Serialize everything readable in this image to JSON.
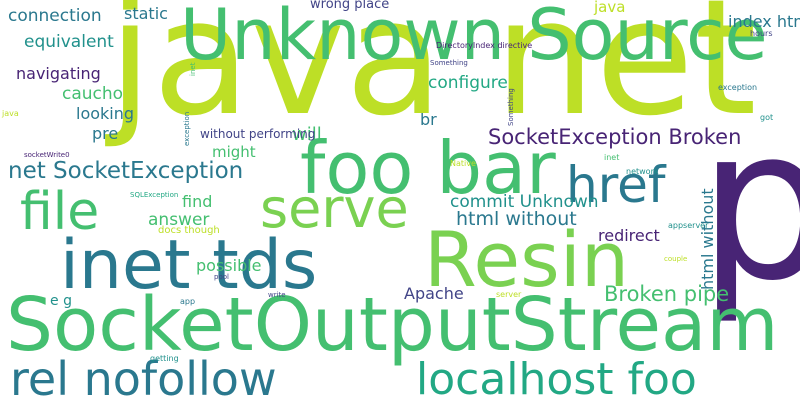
{
  "palette": {
    "dark_purple": "#482475",
    "indigo": "#414487",
    "blue": "#355f8d",
    "teal_blue": "#2a788e",
    "teal": "#21918c",
    "green_teal": "#22a884",
    "green": "#44bf70",
    "light_green": "#7ad151",
    "yellow_green": "#bddf26"
  },
  "words": [
    {
      "text": "java net",
      "color": "#bddf26"
    },
    {
      "text": "p",
      "color": "#482475"
    },
    {
      "text": "Unknown Source",
      "color": "#44bf70"
    },
    {
      "text": "SocketOutputStream",
      "color": "#44bf70"
    },
    {
      "text": "Resin",
      "color": "#7ad151"
    },
    {
      "text": "inet tds",
      "color": "#2a788e"
    },
    {
      "text": "foo bar",
      "color": "#44bf70"
    },
    {
      "text": "rel nofollow",
      "color": "#2a788e"
    },
    {
      "text": "localhost foo",
      "color": "#22a884"
    },
    {
      "text": "file",
      "color": "#44bf70"
    },
    {
      "text": "serve",
      "color": "#7ad151"
    },
    {
      "text": "href",
      "color": "#2a788e"
    },
    {
      "text": "net SocketException",
      "color": "#2a788e"
    },
    {
      "text": "SocketException Broken",
      "color": "#482475"
    },
    {
      "text": "Broken pipe",
      "color": "#44bf70"
    },
    {
      "text": "html without",
      "color": "#2a788e"
    },
    {
      "text": "commit Unknown",
      "color": "#21918c"
    },
    {
      "text": "connection",
      "color": "#2a788e"
    },
    {
      "text": "equivalent",
      "color": "#21918c"
    },
    {
      "text": "navigating",
      "color": "#482475"
    },
    {
      "text": "configure",
      "color": "#22a884"
    },
    {
      "text": "looking",
      "color": "#2a788e"
    },
    {
      "text": "answer",
      "color": "#44bf70"
    },
    {
      "text": "possible",
      "color": "#44bf70"
    },
    {
      "text": "Apache",
      "color": "#414487"
    },
    {
      "text": "redirect",
      "color": "#482475"
    },
    {
      "text": "static",
      "color": "#2a788e"
    },
    {
      "text": "java",
      "color": "#bddf26"
    },
    {
      "text": "index html",
      "color": "#2a788e"
    },
    {
      "text": "caucho",
      "color": "#44bf70"
    },
    {
      "text": "pre",
      "color": "#2a788e"
    },
    {
      "text": "find",
      "color": "#44bf70"
    },
    {
      "text": "might",
      "color": "#44bf70"
    },
    {
      "text": "will",
      "color": "#44bf70"
    },
    {
      "text": "br",
      "color": "#2a788e"
    },
    {
      "text": "e g",
      "color": "#21918c"
    },
    {
      "text": "wrong place",
      "color": "#414487"
    },
    {
      "text": "without performing",
      "color": "#414487"
    },
    {
      "text": "docs though",
      "color": "#bddf26"
    },
    {
      "text": "DirectoryIndex directive",
      "color": "#482475"
    },
    {
      "text": "Something",
      "color": "#414487"
    },
    {
      "text": "Native",
      "color": "#bddf26"
    },
    {
      "text": "network",
      "color": "#21918c"
    },
    {
      "text": "inet",
      "color": "#44bf70"
    },
    {
      "text": "exception",
      "color": "#2a788e"
    },
    {
      "text": "java",
      "color": "#bddf26"
    },
    {
      "text": "got",
      "color": "#21918c"
    },
    {
      "text": "hours",
      "color": "#414487"
    },
    {
      "text": "socketWrite0",
      "color": "#482475"
    },
    {
      "text": "SQLException",
      "color": "#22a884"
    },
    {
      "text": "appserver",
      "color": "#21918c"
    },
    {
      "text": "couple",
      "color": "#bddf26"
    },
    {
      "text": "pool",
      "color": "#414487"
    },
    {
      "text": "app",
      "color": "#2a788e"
    },
    {
      "text": "write",
      "color": "#414487"
    },
    {
      "text": "server",
      "color": "#bddf26"
    },
    {
      "text": "getting",
      "color": "#21918c"
    },
    {
      "text": "Method",
      "color": "#bddf26"
    },
    {
      "text": "database",
      "color": "#2a788e"
    },
    {
      "text": "fixed",
      "color": "#414487"
    },
    {
      "text": "occured",
      "color": "#414487"
    },
    {
      "text": "socketWrite",
      "color": "#414487"
    }
  ]
}
